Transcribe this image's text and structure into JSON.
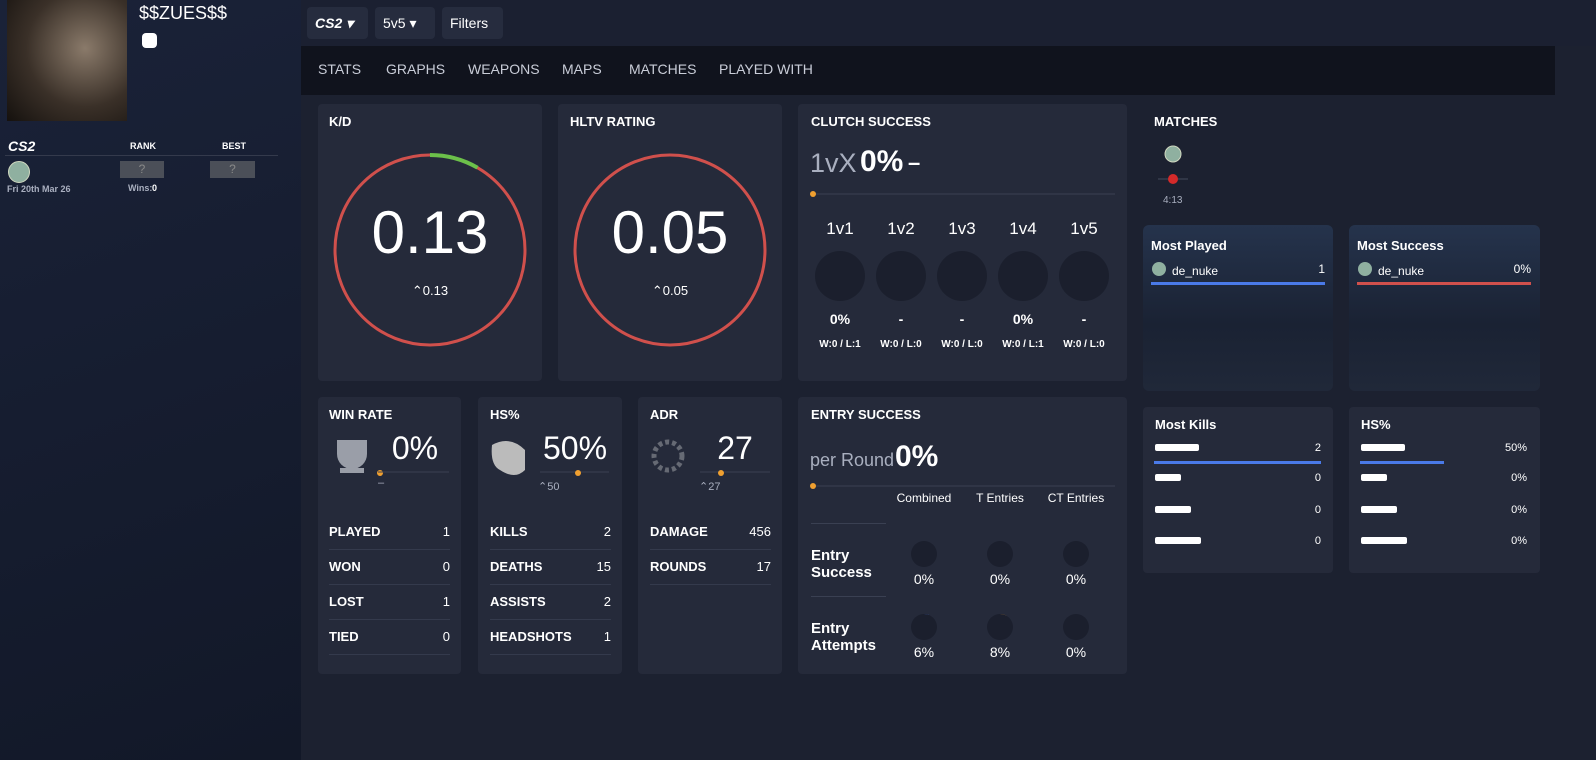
{
  "profile": {
    "name": "$$ZUES$$",
    "game": "CS2",
    "rank_header": "RANK",
    "best_header": "BEST",
    "rank": "?",
    "best": "?",
    "date": "Fri 20th Mar 26",
    "wins_label": "Wins:",
    "wins": "0"
  },
  "toolbar": {
    "game": "CS2",
    "mode": "5v5",
    "filters": "Filters"
  },
  "tabs": [
    "STATS",
    "GRAPHS",
    "WEAPONS",
    "MAPS",
    "MATCHES",
    "PLAYED WITH"
  ],
  "kd": {
    "title": "K/D",
    "value": "0.13",
    "delta": "0.13"
  },
  "hltv": {
    "title": "HLTV RATING",
    "value": "0.05",
    "delta": "0.05"
  },
  "clutch": {
    "title": "CLUTCH SUCCESS",
    "label": "1vX",
    "value": "0%",
    "delta": "–",
    "columns": [
      {
        "label": "1v1",
        "value": "0%",
        "record": "W:0 / L:1"
      },
      {
        "label": "1v2",
        "value": "-",
        "record": "W:0 / L:0"
      },
      {
        "label": "1v3",
        "value": "-",
        "record": "W:0 / L:0"
      },
      {
        "label": "1v4",
        "value": "0%",
        "record": "W:0 / L:1"
      },
      {
        "label": "1v5",
        "value": "-",
        "record": "W:0 / L:0"
      }
    ]
  },
  "matches": {
    "title": "MATCHES",
    "duration": "4:13"
  },
  "most_played": {
    "title": "Most Played",
    "map": "de_nuke",
    "value": "1"
  },
  "most_success": {
    "title": "Most Success",
    "map": "de_nuke",
    "value": "0%"
  },
  "win_rate": {
    "title": "WIN RATE",
    "value": "0%",
    "delta": "–",
    "rows": [
      [
        "PLAYED",
        "1"
      ],
      [
        "WON",
        "0"
      ],
      [
        "LOST",
        "1"
      ],
      [
        "TIED",
        "0"
      ]
    ]
  },
  "hs": {
    "title": "HS%",
    "value": "50%",
    "delta": "50",
    "rows": [
      [
        "KILLS",
        "2"
      ],
      [
        "DEATHS",
        "15"
      ],
      [
        "ASSISTS",
        "2"
      ],
      [
        "HEADSHOTS",
        "1"
      ]
    ]
  },
  "adr": {
    "title": "ADR",
    "value": "27",
    "delta": "27",
    "rows": [
      [
        "DAMAGE",
        "456"
      ],
      [
        "ROUNDS",
        "17"
      ]
    ]
  },
  "entry": {
    "title": "ENTRY SUCCESS",
    "label": "per Round",
    "value": "0%",
    "columns": [
      "Combined",
      "T Entries",
      "CT Entries"
    ],
    "rows": [
      {
        "label": "Entry Success",
        "values": [
          "0%",
          "0%",
          "0%"
        ]
      },
      {
        "label": "Entry Attempts",
        "values": [
          "6%",
          "8%",
          "0%"
        ]
      }
    ]
  },
  "most_kills": {
    "title": "Most Kills",
    "values": [
      "2",
      "0",
      "0",
      "0"
    ]
  },
  "weapon_hs": {
    "title": "HS%",
    "values": [
      "50%",
      "0%",
      "0%",
      "0%"
    ]
  }
}
